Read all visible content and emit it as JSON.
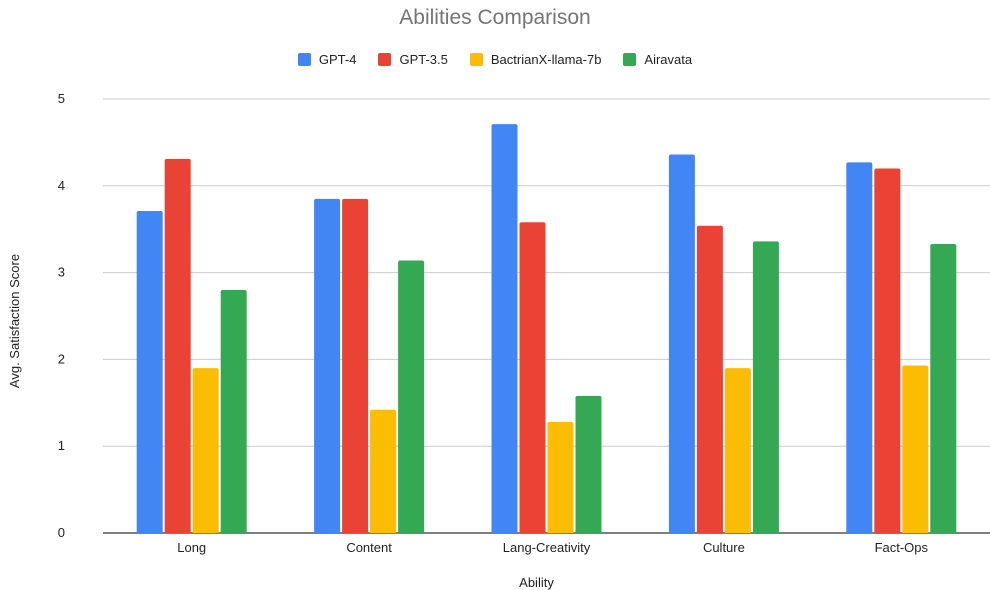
{
  "chart_data": {
    "type": "bar",
    "title": "Abilities Comparison",
    "xlabel": "Ability",
    "ylabel": "Avg. Satisfaction Score",
    "ylim": [
      0,
      5
    ],
    "yticks": [
      0,
      1,
      2,
      3,
      4,
      5
    ],
    "grid": true,
    "legend_position": "top",
    "categories": [
      "Long",
      "Content",
      "Lang-Creativity",
      "Culture",
      "Fact-Ops"
    ],
    "series": [
      {
        "name": "GPT-4",
        "color": "#4285F4",
        "values": [
          3.71,
          3.85,
          4.71,
          4.36,
          4.27
        ]
      },
      {
        "name": "GPT-3.5",
        "color": "#EA4335",
        "values": [
          4.31,
          3.85,
          3.58,
          3.54,
          4.2
        ]
      },
      {
        "name": "BactrianX-llama-7b",
        "color": "#FBBC04",
        "values": [
          1.9,
          1.42,
          1.28,
          1.9,
          1.93
        ]
      },
      {
        "name": "Airavata",
        "color": "#34A853",
        "values": [
          2.8,
          3.14,
          1.58,
          3.36,
          3.33
        ]
      }
    ]
  }
}
